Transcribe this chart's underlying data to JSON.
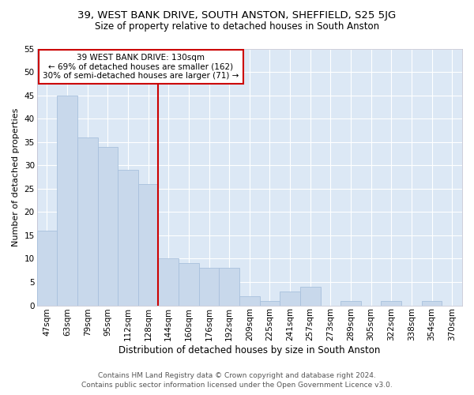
{
  "title1": "39, WEST BANK DRIVE, SOUTH ANSTON, SHEFFIELD, S25 5JG",
  "title2": "Size of property relative to detached houses in South Anston",
  "xlabel": "Distribution of detached houses by size in South Anston",
  "ylabel": "Number of detached properties",
  "categories": [
    "47sqm",
    "63sqm",
    "79sqm",
    "95sqm",
    "112sqm",
    "128sqm",
    "144sqm",
    "160sqm",
    "176sqm",
    "192sqm",
    "209sqm",
    "225sqm",
    "241sqm",
    "257sqm",
    "273sqm",
    "289sqm",
    "305sqm",
    "322sqm",
    "338sqm",
    "354sqm",
    "370sqm"
  ],
  "values": [
    16,
    45,
    36,
    34,
    29,
    26,
    10,
    9,
    8,
    8,
    2,
    1,
    3,
    4,
    0,
    1,
    0,
    1,
    0,
    1,
    0
  ],
  "bar_color": "#c8d8eb",
  "bar_edge_color": "#a8c0dd",
  "annotation_title": "39 WEST BANK DRIVE: 130sqm",
  "annotation_line1": "← 69% of detached houses are smaller (162)",
  "annotation_line2": "30% of semi-detached houses are larger (71) →",
  "annotation_box_edgecolor": "#cc0000",
  "vline_color": "#cc0000",
  "vline_x_index": 5,
  "ylim": [
    0,
    55
  ],
  "yticks": [
    0,
    5,
    10,
    15,
    20,
    25,
    30,
    35,
    40,
    45,
    50,
    55
  ],
  "footer1": "Contains HM Land Registry data © Crown copyright and database right 2024.",
  "footer2": "Contains public sector information licensed under the Open Government Licence v3.0.",
  "plot_bg_color": "#dce8f5",
  "fig_bg_color": "#ffffff",
  "grid_color": "#ffffff",
  "title1_fontsize": 9.5,
  "title2_fontsize": 8.5,
  "ylabel_fontsize": 8,
  "xlabel_fontsize": 8.5,
  "tick_fontsize": 7.5,
  "annotation_fontsize": 7.5,
  "footer_fontsize": 6.5
}
